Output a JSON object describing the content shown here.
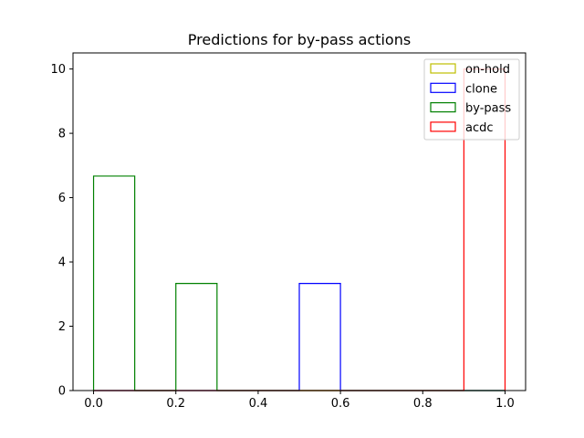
{
  "chart_data": {
    "type": "bar",
    "title": "Predictions for by-pass actions",
    "xlabel": "",
    "ylabel": "",
    "xlim": [
      -0.05,
      1.05
    ],
    "ylim": [
      0,
      10.5
    ],
    "xticks": [
      0.0,
      0.2,
      0.4,
      0.6,
      0.8,
      1.0
    ],
    "xtick_labels": [
      "0.0",
      "0.2",
      "0.4",
      "0.6",
      "0.8",
      "1.0"
    ],
    "yticks": [
      0,
      2,
      4,
      6,
      8,
      10
    ],
    "ytick_labels": [
      "0",
      "2",
      "4",
      "6",
      "8",
      "10"
    ],
    "bin_edges": [
      0.0,
      0.1,
      0.2,
      0.3,
      0.4,
      0.5,
      0.6,
      0.7,
      0.8,
      0.9,
      1.0
    ],
    "histtype": "step",
    "grid": false,
    "legend_position": "top-right",
    "series": [
      {
        "name": "on-hold",
        "color": "#bfbf00",
        "values": [
          0,
          0,
          0,
          0,
          0,
          0,
          0,
          0,
          0,
          0
        ]
      },
      {
        "name": "clone",
        "color": "#0000ff",
        "values": [
          0,
          0,
          0,
          0,
          0,
          3.33,
          0,
          0,
          0,
          0
        ]
      },
      {
        "name": "by-pass",
        "color": "#008000",
        "values": [
          6.67,
          0,
          3.33,
          0,
          0,
          0,
          0,
          0,
          0,
          0
        ]
      },
      {
        "name": "acdc",
        "color": "#ff0000",
        "values": [
          0,
          0,
          0,
          0,
          0,
          0,
          0,
          0,
          0,
          10
        ]
      }
    ]
  }
}
